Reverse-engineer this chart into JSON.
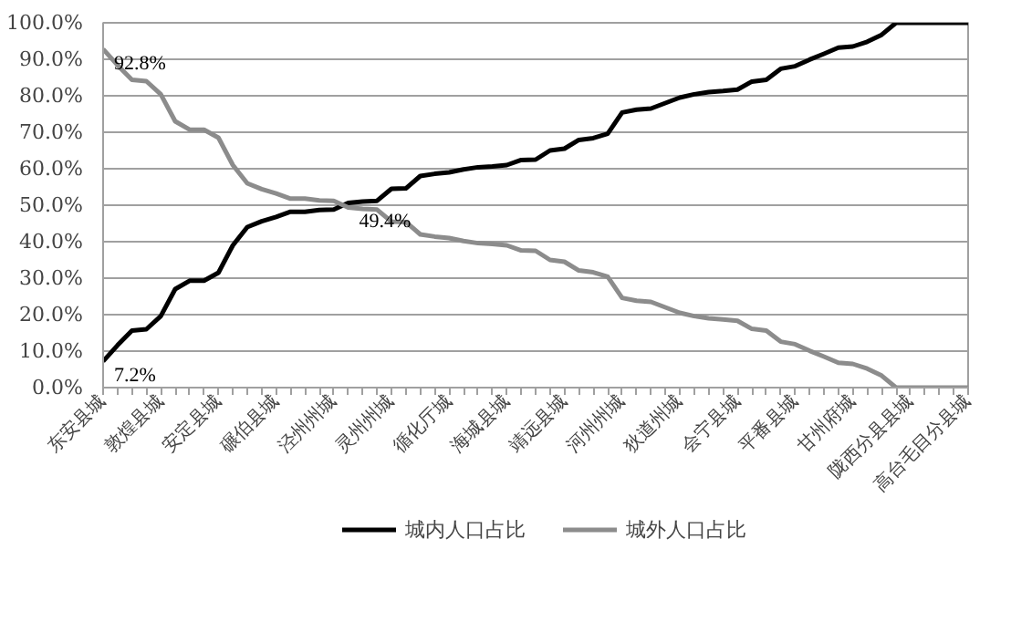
{
  "chart_data": {
    "type": "line",
    "categories": [
      "东安县城",
      null,
      null,
      null,
      "敦煌县城",
      null,
      null,
      null,
      "安定县城",
      null,
      null,
      null,
      "碾伯县城",
      null,
      null,
      null,
      "泾州州城",
      null,
      null,
      null,
      "灵州州城",
      null,
      null,
      null,
      "循化厅城",
      null,
      null,
      null,
      "海城县城",
      null,
      null,
      null,
      "靖远县城",
      null,
      null,
      null,
      "河州州城",
      null,
      null,
      null,
      "狄道州城",
      null,
      null,
      null,
      "会宁县城",
      null,
      null,
      null,
      "平番县城",
      null,
      null,
      null,
      "甘州府城",
      null,
      null,
      null,
      "陇西分县县城",
      null,
      null,
      null,
      "高台毛目分县城"
    ],
    "series": [
      {
        "name": "城内人口占比",
        "color": "#000000",
        "value_labels": [
          "7.2%",
          null,
          null,
          null,
          null,
          null,
          null,
          null,
          null,
          null,
          null,
          null,
          null,
          null,
          null,
          null,
          null,
          null,
          null,
          null,
          null,
          null,
          null,
          null,
          null,
          null,
          null,
          null,
          null,
          null,
          null,
          null,
          null,
          null,
          null,
          null,
          null,
          null,
          null,
          null,
          null,
          null,
          null,
          null,
          null,
          null,
          null,
          null,
          null,
          null,
          null,
          null,
          null,
          null,
          null,
          null,
          null,
          null,
          null,
          null,
          null
        ],
        "values": [
          7.2,
          11.6,
          15.6,
          16.0,
          19.6,
          27.0,
          29.3,
          29.3,
          31.5,
          39.0,
          44.0,
          45.6,
          46.8,
          48.2,
          48.2,
          48.7,
          48.8,
          50.6,
          51.0,
          51.2,
          54.5,
          54.6,
          58.0,
          58.6,
          59.0,
          59.8,
          60.4,
          60.6,
          61.0,
          62.4,
          62.5,
          65.0,
          65.5,
          67.9,
          68.4,
          69.6,
          75.4,
          76.2,
          76.5,
          78.0,
          79.5,
          80.4,
          81.0,
          81.3,
          81.7,
          83.9,
          84.4,
          87.4,
          88.1,
          89.9,
          91.5,
          93.2,
          93.5,
          94.8,
          96.7,
          100,
          100,
          100,
          100,
          100,
          100
        ]
      },
      {
        "name": "城外人口占比",
        "color": "#8c8c8c",
        "value_labels": [
          "92.8%",
          null,
          null,
          null,
          null,
          null,
          null,
          null,
          null,
          null,
          null,
          null,
          null,
          null,
          null,
          null,
          null,
          "49.4%",
          null,
          null,
          null,
          null,
          null,
          null,
          null,
          null,
          null,
          null,
          null,
          null,
          null,
          null,
          null,
          null,
          null,
          null,
          null,
          null,
          null,
          null,
          null,
          null,
          null,
          null,
          null,
          null,
          null,
          null,
          null,
          null,
          null,
          null,
          null,
          null,
          null,
          null,
          null,
          null,
          null,
          null,
          null
        ],
        "values": [
          92.8,
          88.4,
          84.4,
          84.0,
          80.4,
          73.0,
          70.7,
          70.7,
          68.5,
          61.0,
          56.0,
          54.4,
          53.2,
          51.8,
          51.8,
          51.3,
          51.2,
          49.4,
          49.0,
          48.8,
          45.5,
          45.4,
          42.0,
          41.4,
          41.0,
          40.2,
          39.6,
          39.4,
          39.0,
          37.6,
          37.5,
          35.0,
          34.5,
          32.1,
          31.6,
          30.4,
          24.6,
          23.8,
          23.5,
          22.0,
          20.5,
          19.6,
          19.0,
          18.7,
          18.3,
          16.1,
          15.6,
          12.6,
          11.9,
          10.1,
          8.5,
          6.8,
          6.5,
          5.2,
          3.3,
          0,
          0,
          0,
          0,
          0,
          0
        ]
      }
    ],
    "ylim": [
      0,
      100
    ],
    "yticks": [
      {
        "value": 0,
        "label": "0.0%"
      },
      {
        "value": 10,
        "label": "10.0%"
      },
      {
        "value": 20,
        "label": "20.0%"
      },
      {
        "value": 30,
        "label": "30.0%"
      },
      {
        "value": 40,
        "label": "40.0%"
      },
      {
        "value": 50,
        "label": "50.0%"
      },
      {
        "value": 60,
        "label": "60.0%"
      },
      {
        "value": 70,
        "label": "70.0%"
      },
      {
        "value": 80,
        "label": "80.0%"
      },
      {
        "value": 90,
        "label": "90.0%"
      },
      {
        "value": 100,
        "label": "100.0%"
      }
    ],
    "grid": "y",
    "legend": "bottom",
    "line_style": "solid"
  }
}
